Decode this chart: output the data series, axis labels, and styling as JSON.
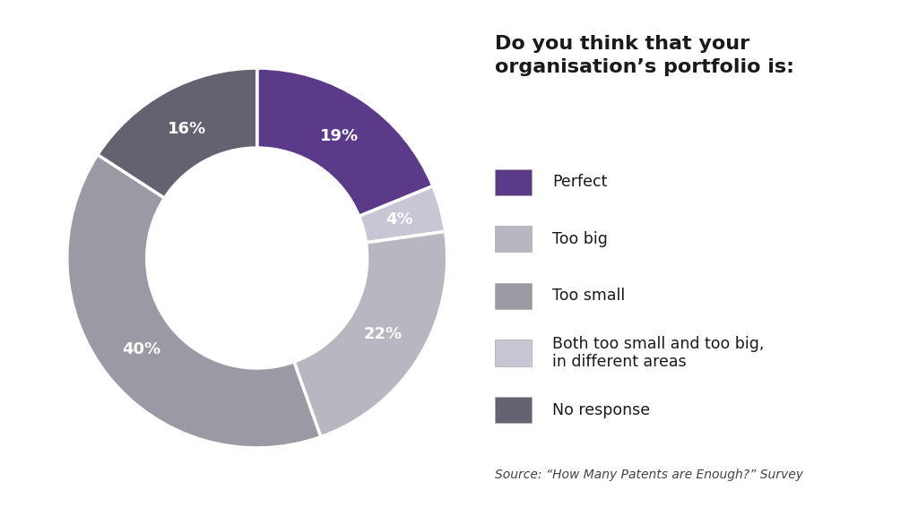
{
  "title_line1": "Do you think that your",
  "title_line2": "organisation’s portfolio is:",
  "source": "Source: “How Many Patents are Enough?” Survey",
  "slices": [
    19,
    4,
    22,
    40,
    16
  ],
  "labels": [
    "19%",
    "4%",
    "22%",
    "40%",
    "16%"
  ],
  "colors": [
    "#5b3a8a",
    "#c8c5d4",
    "#b8b6c0",
    "#9b9aa4",
    "#636270"
  ],
  "legend_labels": [
    "Perfect",
    "Too big",
    "Too small",
    "Both too small and too big,\nin different areas",
    "No response"
  ],
  "legend_colors": [
    "#5b3a8a",
    "#b8b6c0",
    "#9b9aa4",
    "#c8c5d4",
    "#636270"
  ],
  "background_color": "#ffffff",
  "text_color": "#1a1a1a",
  "startangle": 90,
  "wedge_linewidth": 2.5,
  "wedge_edgecolor": "#ffffff"
}
